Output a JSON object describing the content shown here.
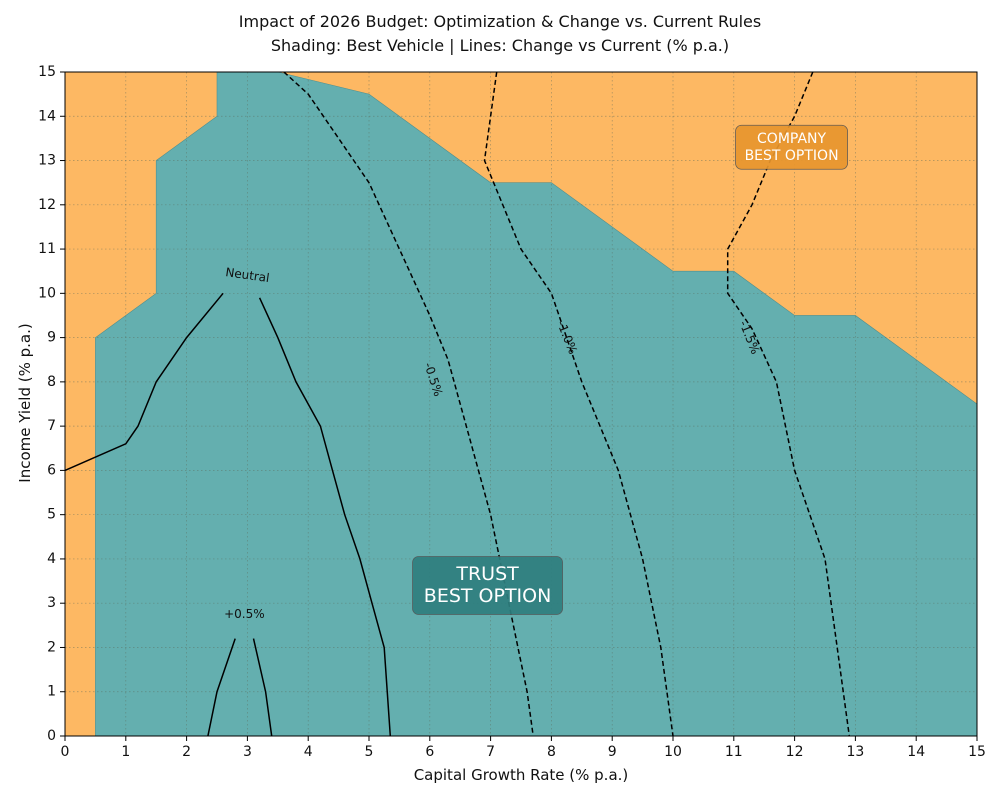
{
  "chart_data": {
    "type": "contour",
    "title": "Impact of 2026 Budget: Optimization & Change vs. Current Rules",
    "subtitle": "Shading: Best Vehicle | Lines: Change vs Current (% p.a.)",
    "xlabel": "Capital Growth Rate (% p.a.)",
    "ylabel": "Income Yield (% p.a.)",
    "xlim": [
      0,
      15
    ],
    "ylim": [
      0,
      15
    ],
    "xticks": [
      "0",
      "1",
      "2",
      "3",
      "4",
      "5",
      "6",
      "7",
      "8",
      "9",
      "10",
      "11",
      "12",
      "13",
      "14",
      "15"
    ],
    "yticks": [
      "0",
      "1",
      "2",
      "3",
      "4",
      "5",
      "6",
      "7",
      "8",
      "9",
      "10",
      "11",
      "12",
      "13",
      "14",
      "15"
    ],
    "grid": true,
    "colors": {
      "trust": "#64afaf",
      "company": "#fdb863",
      "trust_box": "#2f7f7f",
      "company_box": "#e8962e"
    },
    "regions": {
      "company_label": "COMPANY\nBEST OPTION",
      "trust_label": "TRUST\nBEST OPTION",
      "trust_boundary": [
        [
          0.5,
          0
        ],
        [
          0.5,
          9
        ],
        [
          1.5,
          10
        ],
        [
          1.5,
          13
        ],
        [
          2.5,
          14
        ],
        [
          2.5,
          15
        ],
        [
          3.5,
          15
        ],
        [
          5,
          14.5
        ],
        [
          7,
          12.5
        ],
        [
          8,
          12.5
        ],
        [
          10,
          10.5
        ],
        [
          11,
          10.5
        ],
        [
          12,
          9.5
        ],
        [
          13,
          9.5
        ],
        [
          15,
          7.5
        ],
        [
          15,
          0
        ]
      ]
    },
    "contours": [
      {
        "label": "Neutral",
        "style": "solid",
        "segments": [
          [
            [
              0,
              6
            ],
            [
              1,
              6.6
            ],
            [
              1.2,
              7
            ],
            [
              1.5,
              8
            ],
            [
              2,
              9
            ],
            [
              2.6,
              10
            ]
          ],
          [
            [
              3.2,
              9.9
            ],
            [
              3.5,
              9
            ],
            [
              3.8,
              8
            ],
            [
              4.2,
              7
            ],
            [
              4.4,
              6
            ],
            [
              4.6,
              5
            ],
            [
              4.85,
              4
            ],
            [
              5.05,
              3
            ],
            [
              5.25,
              2
            ],
            [
              5.35,
              0
            ]
          ]
        ]
      },
      {
        "label": "+0.5%",
        "style": "solid",
        "segments": [
          [
            [
              2.35,
              0
            ],
            [
              2.5,
              1
            ],
            [
              2.8,
              2.2
            ]
          ],
          [
            [
              3.1,
              2.2
            ],
            [
              3.3,
              1
            ],
            [
              3.4,
              0
            ]
          ]
        ]
      },
      {
        "label": "-0.5%",
        "style": "dashed",
        "segments": [
          [
            [
              3.6,
              15
            ],
            [
              4,
              14.5
            ],
            [
              4.5,
              13.5
            ],
            [
              5,
              12.5
            ],
            [
              5.5,
              11
            ],
            [
              6,
              9.5
            ],
            [
              6.3,
              8.5
            ],
            [
              6.6,
              7
            ],
            [
              7,
              5
            ],
            [
              7.3,
              3
            ],
            [
              7.6,
              1
            ],
            [
              7.7,
              0
            ]
          ]
        ]
      },
      {
        "label": "-1.0%",
        "style": "dashed",
        "segments": [
          [
            [
              7.1,
              15
            ],
            [
              7.0,
              14
            ],
            [
              6.9,
              13
            ],
            [
              7.5,
              11
            ],
            [
              8,
              10
            ],
            [
              8.5,
              8
            ],
            [
              9.1,
              6
            ],
            [
              9.5,
              4
            ],
            [
              9.8,
              2
            ],
            [
              10,
              0
            ]
          ]
        ]
      },
      {
        "label": "-1.5%",
        "style": "dashed",
        "segments": [
          [
            [
              12.3,
              15
            ],
            [
              12,
              14
            ],
            [
              11.6,
              13
            ],
            [
              11.3,
              12
            ],
            [
              10.9,
              11
            ],
            [
              10.9,
              10
            ],
            [
              11.3,
              9.2
            ],
            [
              11.7,
              8
            ],
            [
              12,
              6
            ],
            [
              12.5,
              4
            ],
            [
              12.7,
              2
            ],
            [
              12.9,
              0
            ]
          ]
        ]
      }
    ]
  }
}
